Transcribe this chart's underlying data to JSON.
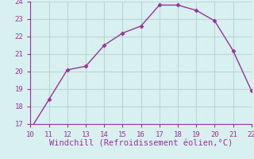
{
  "x": [
    10,
    11,
    12,
    13,
    14,
    15,
    16,
    17,
    18,
    19,
    20,
    21,
    22
  ],
  "y": [
    16.7,
    18.4,
    20.1,
    20.3,
    21.5,
    22.2,
    22.6,
    23.8,
    23.8,
    23.5,
    22.9,
    21.2,
    18.9
  ],
  "xlim": [
    10,
    22
  ],
  "ylim": [
    17,
    24
  ],
  "xticks": [
    10,
    11,
    12,
    13,
    14,
    15,
    16,
    17,
    18,
    19,
    20,
    21,
    22
  ],
  "yticks": [
    17,
    18,
    19,
    20,
    21,
    22,
    23,
    24
  ],
  "xlabel": "Windchill (Refroidissement éolien,°C)",
  "line_color": "#993399",
  "marker": "D",
  "marker_size": 2.5,
  "bg_color": "#d8f0f0",
  "grid_color": "#b8d8d8",
  "spine_color": "#993399",
  "tick_label_color": "#993399",
  "xlabel_color": "#993399",
  "tick_fontsize": 6.5,
  "xlabel_fontsize": 7.5
}
